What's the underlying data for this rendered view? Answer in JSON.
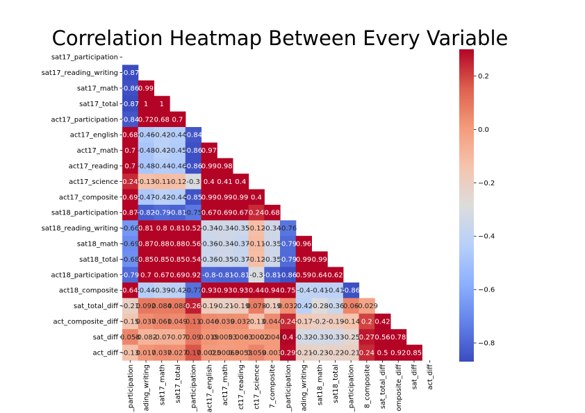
{
  "chart_data": {
    "type": "heatmap",
    "title": "Correlation Heatmap Between Every Variable",
    "variables": [
      "sat17_participation",
      "sat17_reading_writing",
      "sat17_math",
      "sat17_total",
      "act17_participation",
      "act17_english",
      "act17_math",
      "act17_reading",
      "act17_science",
      "act17_composite",
      "sat18_participation",
      "sat18_reading_writing",
      "sat18_math",
      "sat18_total",
      "act18_participation",
      "act18_composite",
      "sat_total_diff",
      "act_composite_diff",
      "sat_diff",
      "act_diff"
    ],
    "x_tick_labels": [
      "_participation",
      "ading_writing",
      "sat17_math",
      "sat17_total",
      "_participation",
      "act17_english",
      "act17_math",
      "ct17_reading",
      "ct17_science",
      "7_composite",
      "_participation",
      "ading_writing",
      "sat18_math",
      "sat18_total",
      "_participation",
      "8_composite",
      "sat_total_diff",
      "omposite_diff",
      "sat_diff",
      "act_diff"
    ],
    "mask": "upper-triangle-and-diagonal",
    "values": [
      [],
      [
        -0.87
      ],
      [
        -0.86,
        0.99
      ],
      [
        -0.87,
        1,
        1
      ],
      [
        -0.84,
        0.72,
        0.68,
        0.7
      ],
      [
        0.68,
        -0.46,
        -0.42,
        -0.44,
        -0.84
      ],
      [
        0.7,
        -0.48,
        -0.42,
        -0.45,
        -0.86,
        0.97
      ],
      [
        0.7,
        -0.48,
        -0.44,
        -0.46,
        -0.86,
        0.99,
        0.98
      ],
      [
        0.24,
        -0.13,
        -0.11,
        -0.12,
        -0.3,
        0.4,
        0.41,
        0.4
      ],
      [
        0.69,
        -0.47,
        -0.42,
        -0.44,
        -0.85,
        0.99,
        0.99,
        0.99,
        0.4
      ],
      [
        0.87,
        -0.82,
        -0.79,
        -0.81,
        -0.75,
        0.67,
        0.69,
        0.67,
        0.24,
        0.68
      ],
      [
        -0.66,
        0.81,
        0.8,
        0.81,
        0.52,
        -0.34,
        -0.34,
        -0.35,
        -0.12,
        -0.34,
        -0.76
      ],
      [
        -0.69,
        0.87,
        0.88,
        0.88,
        0.56,
        -0.36,
        -0.34,
        -0.37,
        -0.11,
        -0.35,
        -0.79,
        0.96
      ],
      [
        -0.68,
        0.85,
        0.85,
        0.85,
        0.54,
        -0.36,
        -0.35,
        -0.37,
        -0.12,
        -0.35,
        -0.79,
        0.99,
        0.99
      ],
      [
        -0.79,
        0.7,
        0.67,
        0.69,
        0.92,
        -0.8,
        -0.81,
        -0.81,
        -0.3,
        -0.81,
        -0.86,
        0.59,
        0.64,
        0.62
      ],
      [
        0.64,
        -0.44,
        -0.39,
        -0.42,
        -0.77,
        0.93,
        0.93,
        0.93,
        0.44,
        0.94,
        0.75,
        -0.4,
        -0.41,
        -0.41,
        -0.86
      ],
      [
        -0.21,
        0.092,
        0.084,
        0.088,
        0.26,
        -0.19,
        -0.21,
        -0.19,
        0.078,
        -0.19,
        0.032,
        -0.42,
        -0.28,
        -0.36,
        0.06,
        -0.029
      ],
      [
        -0.15,
        0.037,
        0.061,
        0.049,
        0.11,
        0.046,
        0.039,
        0.032,
        -0.13,
        0.044,
        0.24,
        -0.17,
        -0.2,
        -0.19,
        -0.14,
        0.2,
        0.42
      ],
      [
        0.058,
        -0.082,
        -0.07,
        -0.07,
        0.09,
        0.019,
        0.0053,
        0.0063,
        0.0002,
        0.0048,
        0.4,
        -0.32,
        -0.33,
        -0.33,
        -0.25,
        0.27,
        0.56,
        0.78
      ],
      [
        -0.13,
        0.017,
        0.037,
        0.027,
        0.17,
        0.0025,
        0.00063,
        0.0053,
        0.059,
        0.003,
        0.29,
        -0.21,
        -0.23,
        -0.22,
        -0.21,
        0.24,
        0.5,
        0.92,
        0.85
      ]
    ],
    "cell_labels": [
      [],
      [
        "-0.87"
      ],
      [
        "-0.86",
        "0.99"
      ],
      [
        "-0.87",
        "1",
        "1"
      ],
      [
        "-0.84",
        "0.72",
        "0.68",
        "0.7"
      ],
      [
        "0.68",
        "-0.46",
        "-0.42",
        "-0.44",
        "-0.84"
      ],
      [
        "0.7",
        "-0.48",
        "-0.42",
        "-0.45",
        "-0.86",
        "0.97"
      ],
      [
        "0.7",
        "-0.48",
        "-0.44",
        "-0.46",
        "-0.86",
        "0.99",
        "0.98"
      ],
      [
        "0.24",
        "-0.13",
        "-0.11",
        "-0.12",
        "-0.3",
        "0.4",
        "0.41",
        "0.4"
      ],
      [
        "0.69",
        "-0.47",
        "-0.42",
        "-0.44",
        "-0.85",
        "0.99",
        "0.99",
        "0.99",
        "0.4"
      ],
      [
        "0.87",
        "-0.82",
        "-0.79",
        "-0.81",
        "-0.75",
        "0.67",
        "0.69",
        "0.67",
        "0.24",
        "0.68"
      ],
      [
        "-0.66",
        "0.81",
        "0.8",
        "0.81",
        "0.52",
        "-0.34",
        "-0.34",
        "-0.35",
        "-0.12",
        "-0.34",
        "-0.76"
      ],
      [
        "-0.69",
        "0.87",
        "0.88",
        "0.88",
        "0.56",
        "-0.36",
        "-0.34",
        "-0.37",
        "-0.11",
        "-0.35",
        "-0.79",
        "0.96"
      ],
      [
        "-0.68",
        "0.85",
        "0.85",
        "0.85",
        "0.54",
        "-0.36",
        "-0.35",
        "-0.37",
        "-0.12",
        "-0.35",
        "-0.79",
        "0.99",
        "0.99"
      ],
      [
        "-0.79",
        "0.7",
        "0.67",
        "0.69",
        "0.92",
        "-0.8",
        "-0.81",
        "-0.81",
        "-0.3",
        "-0.81",
        "-0.86",
        "0.59",
        "0.64",
        "0.62"
      ],
      [
        "0.64",
        "-0.44",
        "-0.39",
        "-0.42",
        "-0.77",
        "0.93",
        "0.93",
        "0.93",
        "0.44",
        "0.94",
        "0.75",
        "-0.4",
        "-0.41",
        "-0.41",
        "-0.86"
      ],
      [
        "-0.21",
        "0.092",
        "0.084",
        "0.088",
        "0.26",
        "-0.19",
        "-0.21",
        "-0.19",
        "0.078",
        "-0.19",
        "0.032",
        "-0.42",
        "-0.28",
        "-0.36",
        "0.06",
        "-0.029"
      ],
      [
        "-0.15",
        "0.037",
        "0.061",
        "0.049",
        "0.11",
        "0.046",
        "0.039",
        "0.032",
        "-0.13",
        "0.044",
        "0.24",
        "-0.17",
        "-0.2",
        "-0.19",
        "-0.14",
        "0.2",
        "0.42"
      ],
      [
        "0.058",
        "-0.082",
        "-0.07",
        "-0.07",
        "0.09",
        "0.019",
        "0.0053",
        "0.0063",
        "0.0002",
        "0.0048",
        "0.4",
        "-0.32",
        "-0.33",
        "-0.33",
        "-0.25",
        "0.27",
        "0.56",
        "0.78"
      ],
      [
        "-0.13",
        "0.017",
        "0.037",
        "0.027",
        "0.17",
        "0.0025",
        "0.00063",
        "0.0053",
        "0.059",
        "0.003",
        "0.29",
        "-0.21",
        "-0.23",
        "-0.22",
        "-0.21",
        "0.24",
        "0.5",
        "0.92",
        "0.85"
      ]
    ],
    "colorbar": {
      "colormap": "coolwarm",
      "vmin": -0.87,
      "vmax": 0.3,
      "ticks": [
        0.2,
        0.0,
        -0.2,
        -0.4,
        -0.6,
        -0.8
      ],
      "tick_labels": [
        "0.2",
        "0.0",
        "−0.2",
        "−0.4",
        "−0.6",
        "−0.8"
      ]
    },
    "grid": false,
    "legend": "colorbar-right"
  }
}
